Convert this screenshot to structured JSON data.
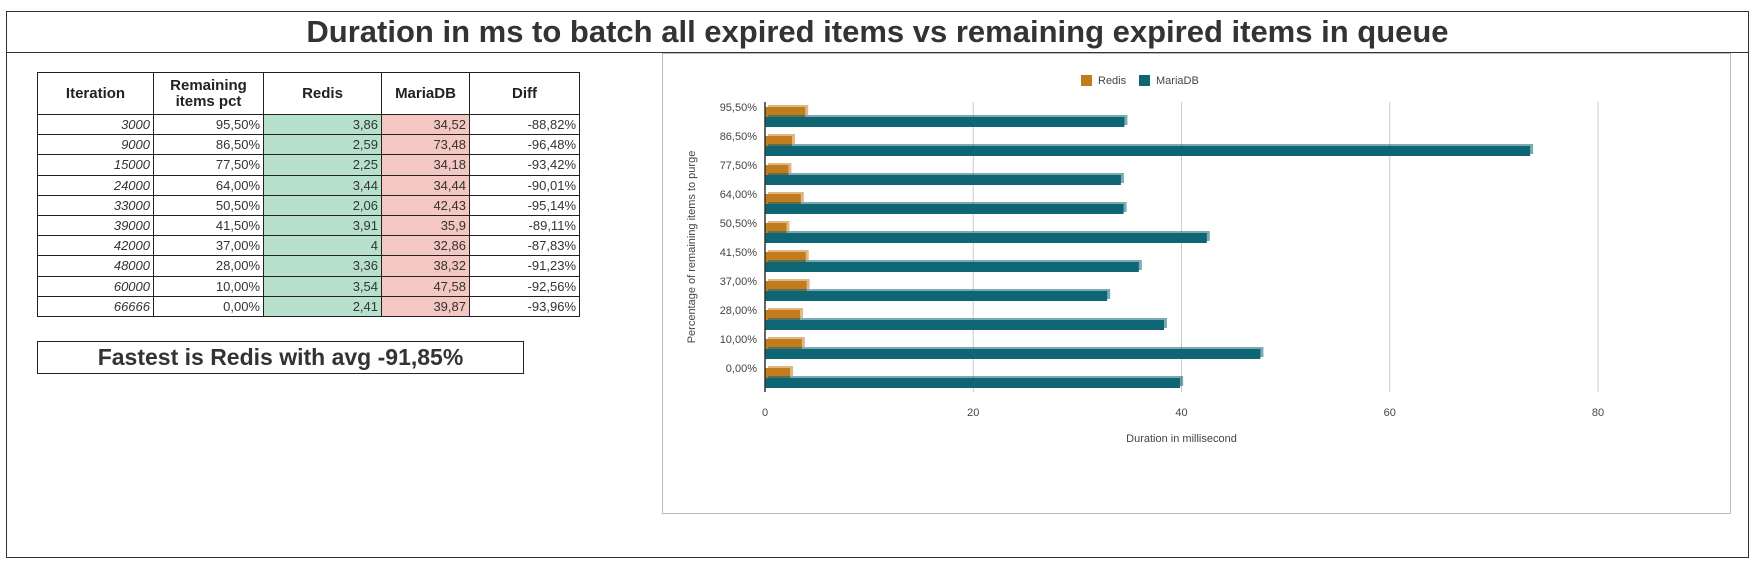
{
  "title": "Duration in ms to batch all expired items vs remaining expired items in queue",
  "table": {
    "headers": [
      "Iteration",
      "Remaining items pct",
      "Redis",
      "MariaDB",
      "Diff"
    ],
    "rows": [
      [
        "3000",
        "95,50%",
        "3,86",
        "34,52",
        "-88,82%"
      ],
      [
        "9000",
        "86,50%",
        "2,59",
        "73,48",
        "-96,48%"
      ],
      [
        "15000",
        "77,50%",
        "2,25",
        "34,18",
        "-93,42%"
      ],
      [
        "24000",
        "64,00%",
        "3,44",
        "34,44",
        "-90,01%"
      ],
      [
        "33000",
        "50,50%",
        "2,06",
        "42,43",
        "-95,14%"
      ],
      [
        "39000",
        "41,50%",
        "3,91",
        "35,9",
        "-89,11%"
      ],
      [
        "42000",
        "37,00%",
        "4",
        "32,86",
        "-87,83%"
      ],
      [
        "48000",
        "28,00%",
        "3,36",
        "38,32",
        "-91,23%"
      ],
      [
        "60000",
        "10,00%",
        "3,54",
        "47,58",
        "-92,56%"
      ],
      [
        "66666",
        "0,00%",
        "2,41",
        "39,87",
        "-93,96%"
      ]
    ]
  },
  "summary": "Fastest is Redis with avg -91,85%",
  "chart_data": {
    "type": "bar",
    "orientation": "horizontal",
    "categories": [
      "95,50%",
      "86,50%",
      "77,50%",
      "64,00%",
      "50,50%",
      "41,50%",
      "37,00%",
      "28,00%",
      "10,00%",
      "0,00%"
    ],
    "series": [
      {
        "name": "Redis",
        "color": "#c27c1e",
        "values": [
          3.86,
          2.59,
          2.25,
          3.44,
          2.06,
          3.91,
          4,
          3.36,
          3.54,
          2.41
        ]
      },
      {
        "name": "MariaDB",
        "color": "#0e6573",
        "values": [
          34.52,
          73.48,
          34.18,
          34.44,
          42.43,
          35.9,
          32.86,
          38.32,
          47.58,
          39.87
        ]
      }
    ],
    "xlabel": "Duration in millisecond",
    "ylabel": "Percentage of remaining items to purge",
    "xlim": [
      0,
      80
    ],
    "xticks": [
      "0",
      "20",
      "40",
      "60",
      "80"
    ],
    "legend": "top",
    "grid": true
  }
}
